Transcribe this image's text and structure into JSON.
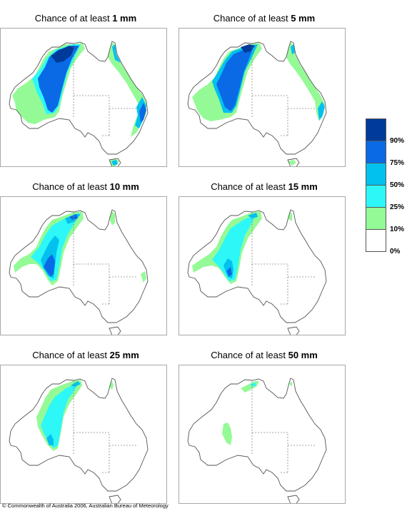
{
  "panels": [
    {
      "prefix": "Chance of at least",
      "amount": "1 mm"
    },
    {
      "prefix": "Chance of at least",
      "amount": "5 mm"
    },
    {
      "prefix": "Chance of at least",
      "amount": "10 mm"
    },
    {
      "prefix": "Chance of at least",
      "amount": "15 mm"
    },
    {
      "prefix": "Chance of at least",
      "amount": "25 mm"
    },
    {
      "prefix": "Chance of at least",
      "amount": "50 mm"
    }
  ],
  "legend": {
    "labels": [
      "90%",
      "75%",
      "50%",
      "25%",
      "10%",
      "0%"
    ],
    "colors": [
      "#003a9a",
      "#0a6ae6",
      "#03c1ef",
      "#2ef7f7",
      "#94fa96",
      "#ffffff"
    ]
  },
  "copyright": "© Commonwealth of Australia 2006, Australian Bureau of Meteorology"
}
